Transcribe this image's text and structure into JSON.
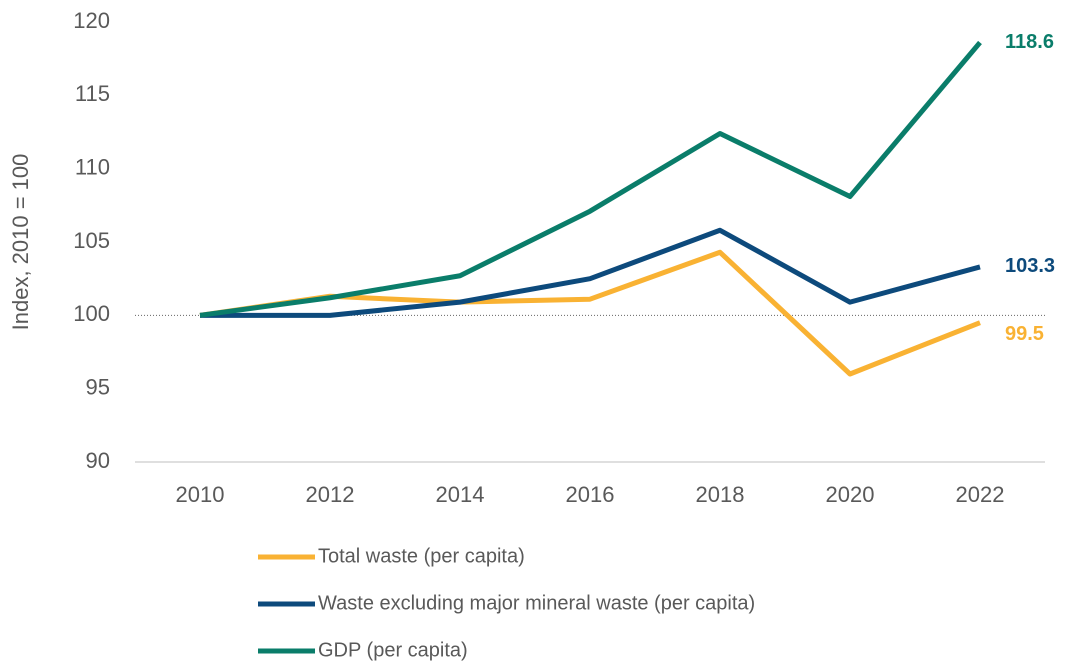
{
  "chart_data": {
    "type": "line",
    "y_label": "Index, 2010 = 100",
    "categories": [
      "2010",
      "2012",
      "2014",
      "2016",
      "2018",
      "2020",
      "2022"
    ],
    "series": [
      {
        "name": "Total waste (per capita)",
        "color": "#f9b233",
        "values": [
          100,
          101.3,
          100.9,
          101.1,
          104.3,
          96.0,
          99.5
        ]
      },
      {
        "name": "Waste excluding major mineral waste (per capita)",
        "color": "#0d4a7c",
        "values": [
          100,
          100.0,
          100.9,
          102.5,
          105.8,
          100.9,
          103.3
        ]
      },
      {
        "name": "GDP (per capita)",
        "color": "#0a7d6a",
        "values": [
          100,
          101.2,
          102.7,
          107.1,
          112.4,
          108.1,
          118.6
        ]
      }
    ],
    "ylim": [
      90,
      120
    ],
    "yticks": [
      90,
      95,
      100,
      105,
      110,
      115,
      120
    ],
    "reference_line": 100,
    "grid": false,
    "end_labels": true,
    "legend": "bottom"
  }
}
